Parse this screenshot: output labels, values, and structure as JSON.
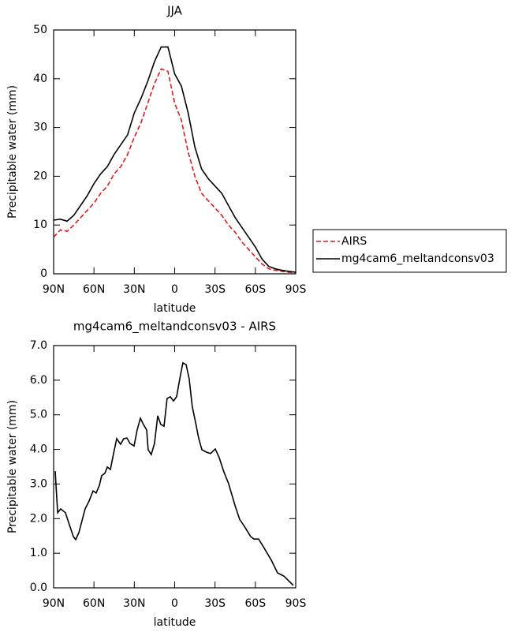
{
  "chart_data": [
    {
      "type": "line",
      "title": "JJA",
      "xlabel": "latitude",
      "ylabel": "Precipitable water (mm)",
      "x": [
        90,
        85,
        80,
        75,
        70,
        65,
        60,
        55,
        50,
        45,
        40,
        35,
        30,
        25,
        20,
        15,
        10,
        5,
        0,
        -5,
        -10,
        -15,
        -20,
        -25,
        -30,
        -35,
        -40,
        -45,
        -50,
        -55,
        -60,
        -65,
        -70,
        -75,
        -80,
        -85,
        -90
      ],
      "series": [
        {
          "name": "AIRS",
          "color": "#e31a1c",
          "style": "dashed",
          "values": [
            7.5,
            9,
            8.7,
            10,
            11.5,
            13,
            14.5,
            16.5,
            18,
            20.5,
            22,
            24.5,
            28,
            31,
            35,
            39,
            42,
            41.5,
            35,
            31.5,
            25,
            20,
            16.5,
            15,
            13.5,
            12,
            10,
            8.5,
            6.5,
            5,
            3.5,
            2,
            1,
            0.7,
            0.5,
            0.3,
            0.2
          ]
        },
        {
          "name": "mg4cam6_meltandconsv03",
          "color": "#000000",
          "style": "solid",
          "values": [
            11,
            11.2,
            10.8,
            12,
            14,
            16,
            18.5,
            20.5,
            22,
            24.5,
            26.5,
            28.5,
            33,
            36,
            39.5,
            43.5,
            46.5,
            46.5,
            41,
            38.5,
            33,
            26,
            21.5,
            19.5,
            18,
            16.5,
            14,
            11.5,
            9.5,
            7.5,
            5.5,
            3,
            1.5,
            1,
            0.7,
            0.5,
            0.3
          ]
        }
      ],
      "xlim": [
        90,
        -90
      ],
      "xticks": [
        {
          "value": 90,
          "label": "90N"
        },
        {
          "value": 60,
          "label": "60N"
        },
        {
          "value": 30,
          "label": "30N"
        },
        0,
        {
          "value": -30,
          "label": "30S"
        },
        {
          "value": -60,
          "label": "60S"
        },
        {
          "value": -90,
          "label": "90S"
        }
      ],
      "ylim": [
        0,
        50
      ],
      "yticks": [
        0,
        10,
        20,
        30,
        40,
        50
      ],
      "legend": "right"
    },
    {
      "type": "line",
      "title": "mg4cam6_meltandconsv03 - AIRS",
      "xlabel": "latitude",
      "ylabel": "Precipitable water (mm)",
      "x": [
        88.8,
        87,
        84.7,
        81.2,
        78.3,
        75.3,
        73.6,
        71.2,
        68.9,
        66.6,
        63.6,
        60.7,
        58.4,
        56,
        54.3,
        51.9,
        50.1,
        47.8,
        45.5,
        43.1,
        40.2,
        37.9,
        35.5,
        33.2,
        30.2,
        27.9,
        25.5,
        23.2,
        20.8,
        19.7,
        17.4,
        15,
        12.6,
        10.3,
        7.9,
        5.6,
        3.2,
        0.9,
        -1.4,
        -3.8,
        -6.1,
        -8.5,
        -10.8,
        -13.1,
        -15.5,
        -17.8,
        -20.2,
        -23.7,
        -26.6,
        -30.2,
        -33.1,
        -36.6,
        -40.1,
        -44.8,
        -48.3,
        -51.8,
        -56.5,
        -58.9,
        -62.4,
        -65.9,
        -71.8,
        -76.5,
        -81.2,
        -85.9,
        -88.2
      ],
      "series": [
        {
          "name": "mg4cam6_meltandconsv03 - AIRS",
          "color": "#000000",
          "style": "solid",
          "values": [
            3.37,
            2.17,
            2.28,
            2.17,
            1.82,
            1.48,
            1.39,
            1.6,
            1.94,
            2.28,
            2.51,
            2.8,
            2.74,
            2.96,
            3.24,
            3.31,
            3.49,
            3.42,
            3.87,
            4.31,
            4.15,
            4.31,
            4.33,
            4.17,
            4.1,
            4.56,
            4.9,
            4.72,
            4.56,
            3.99,
            3.85,
            4.17,
            4.97,
            4.72,
            4.67,
            5.47,
            5.52,
            5.4,
            5.52,
            6.04,
            6.5,
            6.45,
            6.04,
            5.24,
            4.79,
            4.33,
            3.99,
            3.92,
            3.88,
            4.01,
            3.76,
            3.35,
            3.01,
            2.39,
            1.98,
            1.78,
            1.48,
            1.41,
            1.41,
            1.19,
            0.8,
            0.43,
            0.34,
            0.16,
            0.07
          ]
        }
      ],
      "xlim": [
        90,
        -90
      ],
      "xticks": [
        {
          "value": 90,
          "label": "90N"
        },
        {
          "value": 60,
          "label": "60N"
        },
        {
          "value": 30,
          "label": "30N"
        },
        0,
        {
          "value": -30,
          "label": "30S"
        },
        {
          "value": -60,
          "label": "60S"
        },
        {
          "value": -90,
          "label": "90S"
        }
      ],
      "ylim": [
        0,
        7
      ],
      "yticks": [
        {
          "value": 0,
          "label": "0.0"
        },
        {
          "value": 1,
          "label": "1.0"
        },
        {
          "value": 2,
          "label": "2.0"
        },
        {
          "value": 3,
          "label": "3.0"
        },
        {
          "value": 4,
          "label": "4.0"
        },
        {
          "value": 5,
          "label": "5.0"
        },
        {
          "value": 6,
          "label": "6.0"
        },
        {
          "value": 7,
          "label": "7.0"
        }
      ]
    }
  ]
}
